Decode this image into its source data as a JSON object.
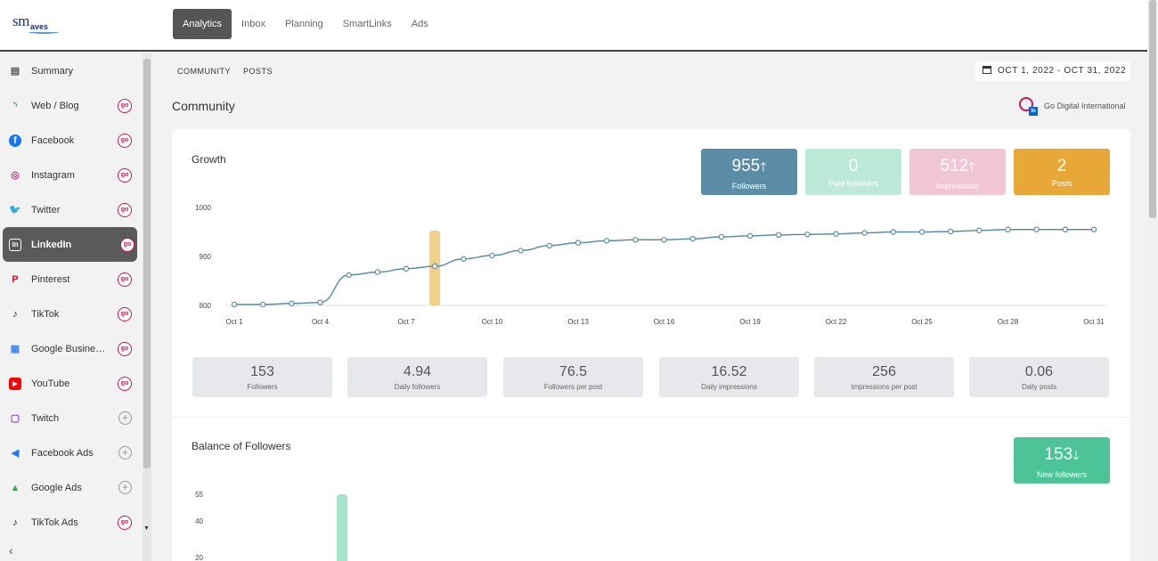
{
  "nav": {
    "items": [
      {
        "label": "Analytics",
        "active": true
      },
      {
        "label": "Inbox",
        "active": false
      },
      {
        "label": "Planning",
        "active": false
      },
      {
        "label": "SmartLinks",
        "active": false
      },
      {
        "label": "Ads",
        "active": false
      }
    ]
  },
  "logo": {
    "sm": "sm",
    "waves": "aves"
  },
  "sidebar": {
    "items": [
      {
        "label": "Summary",
        "icon": "clipboard-icon",
        "icon_color": "#555555",
        "trail": "none"
      },
      {
        "label": "Web / Blog",
        "icon": "rss-icon",
        "icon_color": "#2e9a4f",
        "trail": "badge"
      },
      {
        "label": "Facebook",
        "icon": "facebook-icon",
        "icon_color": "#1877f2",
        "trail": "badge"
      },
      {
        "label": "Instagram",
        "icon": "instagram-icon",
        "icon_color": "#c13584",
        "trail": "badge"
      },
      {
        "label": "Twitter",
        "icon": "twitter-icon",
        "icon_color": "#1da1f2",
        "trail": "badge"
      },
      {
        "label": "LinkedIn",
        "icon": "linkedin-icon",
        "icon_color": "#ffffff",
        "trail": "badge",
        "active": true
      },
      {
        "label": "Pinterest",
        "icon": "pinterest-icon",
        "icon_color": "#e60023",
        "trail": "badge"
      },
      {
        "label": "TikTok",
        "icon": "tiktok-icon",
        "icon_color": "#111111",
        "trail": "badge"
      },
      {
        "label": "Google Business...",
        "icon": "google-business-icon",
        "icon_color": "#4285f4",
        "trail": "badge"
      },
      {
        "label": "YouTube",
        "icon": "youtube-icon",
        "icon_color": "#ff0000",
        "trail": "badge"
      },
      {
        "label": "Twitch",
        "icon": "twitch-icon",
        "icon_color": "#9146ff",
        "trail": "plus"
      },
      {
        "label": "Facebook Ads",
        "icon": "megaphone-icon",
        "icon_color": "#1877f2",
        "trail": "plus"
      },
      {
        "label": "Google Ads",
        "icon": "google-ads-icon",
        "icon_color": "#34a853",
        "trail": "plus"
      },
      {
        "label": "TikTok Ads",
        "icon": "tiktok-icon",
        "icon_color": "#111111",
        "trail": "badge"
      }
    ]
  },
  "tabs": [
    "COMMUNITY",
    "POSTS"
  ],
  "date_range": "OCT 1, 2022 - OCT 31, 2022",
  "page_title": "Community",
  "account_name": "Go Digital International",
  "growth": {
    "title": "Growth",
    "stats": [
      {
        "value": "955",
        "arrow": "up",
        "label": "Followers",
        "color": "#5b8ea6"
      },
      {
        "value": "0",
        "arrow": "none",
        "label": "Paid followers",
        "color": "#bde9d9"
      },
      {
        "value": "512",
        "arrow": "up",
        "label": "Impressions",
        "color": "#f0c6d4"
      },
      {
        "value": "2",
        "arrow": "none",
        "label": "Posts",
        "color": "#e8a838"
      }
    ],
    "metrics": [
      {
        "value": "153",
        "label": "Followers"
      },
      {
        "value": "4.94",
        "label": "Daily followers"
      },
      {
        "value": "76.5",
        "label": "Followers per post"
      },
      {
        "value": "16.52",
        "label": "Daily impressions"
      },
      {
        "value": "256",
        "label": "Impressions per post"
      },
      {
        "value": "0.06",
        "label": "Daily posts"
      }
    ]
  },
  "chart_data": [
    {
      "type": "line",
      "title": "Growth",
      "x": [
        1,
        2,
        3,
        4,
        5,
        6,
        7,
        8,
        9,
        10,
        11,
        12,
        13,
        14,
        15,
        16,
        17,
        18,
        19,
        20,
        21,
        22,
        23,
        24,
        25,
        26,
        27,
        28,
        29,
        30,
        31
      ],
      "series": [
        {
          "values": [
            802,
            802,
            804,
            806,
            862,
            868,
            875,
            880,
            895,
            902,
            912,
            922,
            928,
            932,
            934,
            934,
            936,
            940,
            942,
            944,
            945,
            946,
            948,
            950,
            950,
            951,
            953,
            955,
            955,
            955,
            955
          ]
        }
      ],
      "x_tick_labels": [
        "Oct 1",
        "Oct 4",
        "Oct 7",
        "Oct 10",
        "Oct 13",
        "Oct 16",
        "Oct 19",
        "Oct 22",
        "Oct 25",
        "Oct 28",
        "Oct 31"
      ],
      "x_tick_positions": [
        1,
        4,
        7,
        10,
        13,
        16,
        19,
        22,
        25,
        28,
        31
      ],
      "y_ticks": [
        800,
        900,
        1000
      ],
      "ylim": [
        800,
        1000
      ],
      "highlight_x": 8,
      "colors": {
        "line": "#5b8ea6",
        "highlight": "#f0d08a"
      }
    },
    {
      "type": "bar",
      "title": "Balance of Followers",
      "y_ticks": [
        55,
        40,
        20
      ],
      "x": [
        5
      ],
      "values": [
        55
      ],
      "colors": {
        "bar": "#a8e4cc"
      }
    }
  ],
  "balance": {
    "title": "Balance of Followers",
    "stat": {
      "value": "153",
      "arrow": "down",
      "label": "New followers",
      "color": "#4cc497"
    }
  }
}
